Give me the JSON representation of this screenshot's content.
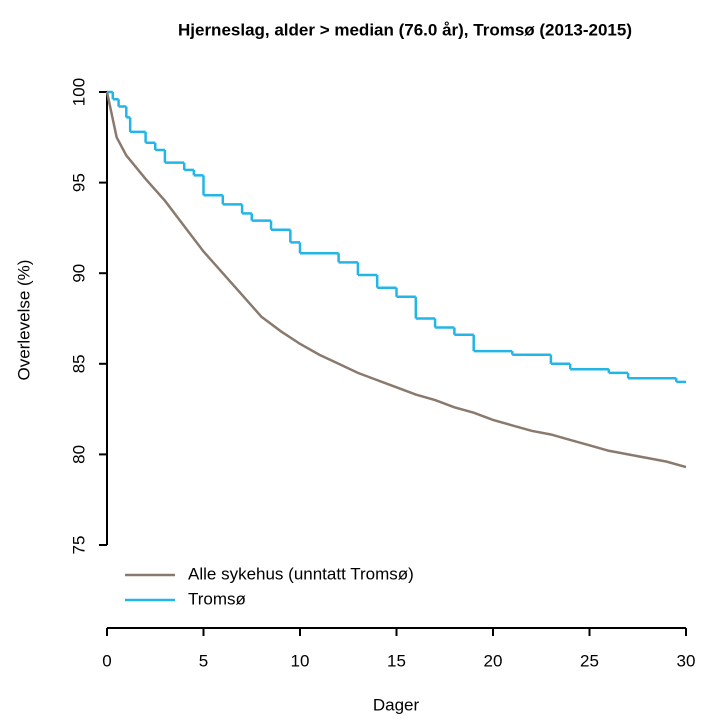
{
  "chart_data": {
    "type": "line",
    "title": "Hjerneslag, alder > median (76.0 år), Tromsø (2013-2015)",
    "x_label": "Dager",
    "y_label": "Overlevelse (%)",
    "xlim": [
      0,
      30
    ],
    "xticks": [
      0,
      5,
      10,
      15,
      20,
      25,
      30
    ],
    "ylim": [
      75,
      100
    ],
    "yticks": [
      75,
      80,
      85,
      90,
      95,
      100
    ],
    "legend": "bottom-left",
    "series": [
      {
        "name": "Alle sykehus (unntatt Tromsø)",
        "color": "#8a7a6e",
        "steps": false,
        "x": [
          0,
          0.2,
          0.5,
          1,
          2,
          3,
          4,
          5,
          6,
          7,
          8,
          9,
          10,
          11,
          12,
          13,
          14,
          15,
          16,
          17,
          18,
          19,
          20,
          21,
          22,
          23,
          24,
          25,
          26,
          27,
          28,
          29,
          30
        ],
        "values": [
          100,
          99,
          97.5,
          96.5,
          95.2,
          94,
          92.6,
          91.2,
          90,
          88.8,
          87.6,
          86.8,
          86.1,
          85.5,
          85,
          84.5,
          84.1,
          83.7,
          83.3,
          83,
          82.6,
          82.3,
          81.9,
          81.6,
          81.3,
          81.1,
          80.8,
          80.5,
          80.2,
          80,
          79.8,
          79.6,
          79.3
        ]
      },
      {
        "name": "Tromsø",
        "color": "#22b5e6",
        "steps": true,
        "x": [
          0,
          0.3,
          0.6,
          1,
          1.2,
          2,
          2.5,
          3,
          4,
          4.5,
          5,
          6,
          7,
          7.5,
          8.5,
          9.5,
          10,
          12,
          13,
          14,
          15,
          16,
          17,
          18,
          19,
          21,
          23,
          24,
          26,
          27,
          29.5,
          30
        ],
        "values": [
          100,
          99.6,
          99.2,
          98.6,
          97.8,
          97.2,
          96.8,
          96.1,
          95.7,
          95.4,
          94.3,
          93.8,
          93.3,
          92.9,
          92.4,
          91.7,
          91.1,
          90.6,
          89.9,
          89.2,
          88.7,
          87.5,
          87,
          86.6,
          85.7,
          85.5,
          85,
          84.7,
          84.5,
          84.2,
          84,
          84
        ]
      }
    ]
  }
}
